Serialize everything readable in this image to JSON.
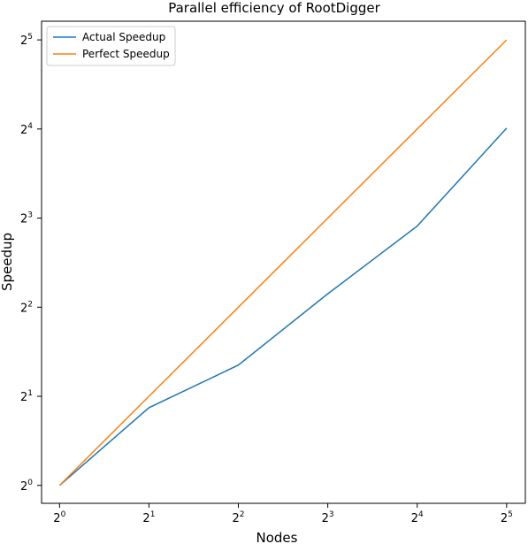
{
  "chart_data": {
    "type": "line",
    "title": "Parallel efficiency of RootDigger",
    "xlabel": "Nodes",
    "ylabel": "Speedup",
    "xscale": "log2",
    "yscale": "log2",
    "x": [
      1,
      2,
      4,
      8,
      16,
      32
    ],
    "xticks": [
      {
        "base": "2",
        "exp": "0"
      },
      {
        "base": "2",
        "exp": "1"
      },
      {
        "base": "2",
        "exp": "2"
      },
      {
        "base": "2",
        "exp": "3"
      },
      {
        "base": "2",
        "exp": "4"
      },
      {
        "base": "2",
        "exp": "5"
      }
    ],
    "yticks": [
      {
        "base": "2",
        "exp": "0"
      },
      {
        "base": "2",
        "exp": "1"
      },
      {
        "base": "2",
        "exp": "2"
      },
      {
        "base": "2",
        "exp": "3"
      },
      {
        "base": "2",
        "exp": "4"
      },
      {
        "base": "2",
        "exp": "5"
      }
    ],
    "xlim": [
      0.87,
      37
    ],
    "ylim": [
      0.87,
      37
    ],
    "grid": false,
    "legend_position": "top-left",
    "series": [
      {
        "name": "Actual Speedup",
        "color": "#1f77b4",
        "values": [
          1,
          1.83,
          2.55,
          4.44,
          7.52,
          16.1
        ]
      },
      {
        "name": "Perfect Speedup",
        "color": "#ff7f0e",
        "values": [
          1,
          2,
          4,
          8,
          16,
          32
        ]
      }
    ]
  }
}
